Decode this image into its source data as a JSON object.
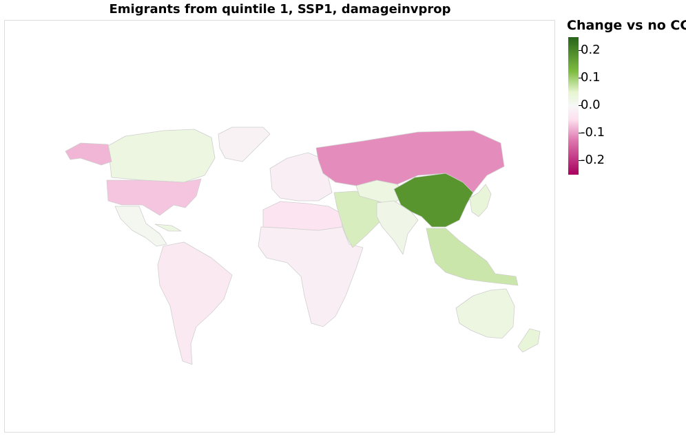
{
  "title": "Emigrants from quintile 1, SSP1, damageinvprop",
  "legend": {
    "title": "Change vs no CC",
    "ticks": [
      "0.2",
      "0.1",
      "0.0",
      "-0.1",
      "-0.2"
    ],
    "colors": {
      "max": "#276419",
      "mid_pos": "#7fbc41",
      "light_pos": "#e6f5d0",
      "zero": "#f7f7f7",
      "light_neg": "#fde0ef",
      "mid_neg": "#de77ae",
      "min": "#a8005e"
    }
  },
  "map_data": {
    "type": "choropleth",
    "color_domain": [
      -0.25,
      0.25
    ],
    "regions": [
      {
        "name": "Canada",
        "value": 0.03
      },
      {
        "name": "United States",
        "value": -0.07
      },
      {
        "name": "Alaska",
        "value": -0.08
      },
      {
        "name": "Greenland",
        "value": -0.01
      },
      {
        "name": "Mexico and Central America",
        "value": 0.01
      },
      {
        "name": "Caribbean",
        "value": 0.03
      },
      {
        "name": "South America",
        "value": -0.03
      },
      {
        "name": "Europe",
        "value": -0.02
      },
      {
        "name": "North Africa",
        "value": -0.04
      },
      {
        "name": "Sub-Saharan Africa",
        "value": -0.02
      },
      {
        "name": "Middle East",
        "value": 0.06
      },
      {
        "name": "Central Asia",
        "value": 0.03
      },
      {
        "name": "South Asia",
        "value": 0.02
      },
      {
        "name": "Russia",
        "value": -0.11
      },
      {
        "name": "China",
        "value": 0.18
      },
      {
        "name": "Japan and Korea",
        "value": 0.04
      },
      {
        "name": "Southeast Asia",
        "value": 0.07
      },
      {
        "name": "Australia",
        "value": 0.03
      },
      {
        "name": "New Zealand",
        "value": 0.04
      }
    ]
  }
}
